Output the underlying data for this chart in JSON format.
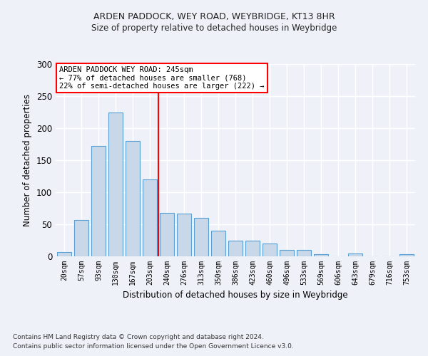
{
  "title1": "ARDEN PADDOCK, WEY ROAD, WEYBRIDGE, KT13 8HR",
  "title2": "Size of property relative to detached houses in Weybridge",
  "xlabel": "Distribution of detached houses by size in Weybridge",
  "ylabel": "Number of detached properties",
  "categories": [
    "20sqm",
    "57sqm",
    "93sqm",
    "130sqm",
    "167sqm",
    "203sqm",
    "240sqm",
    "276sqm",
    "313sqm",
    "350sqm",
    "386sqm",
    "423sqm",
    "460sqm",
    "496sqm",
    "533sqm",
    "569sqm",
    "606sqm",
    "643sqm",
    "679sqm",
    "716sqm",
    "753sqm"
  ],
  "values": [
    7,
    57,
    172,
    225,
    180,
    120,
    68,
    67,
    60,
    40,
    25,
    25,
    20,
    10,
    10,
    3,
    0,
    4,
    0,
    0,
    3
  ],
  "bar_color": "#c8d8e8",
  "bar_edge_color": "#5a9fd4",
  "vline_color": "red",
  "annotation_text": "ARDEN PADDOCK WEY ROAD: 245sqm\n← 77% of detached houses are smaller (768)\n22% of semi-detached houses are larger (222) →",
  "annotation_box_color": "#ffffff",
  "annotation_box_edge": "red",
  "background_color": "#eef2f8",
  "grid_color": "#ffffff",
  "footer1": "Contains HM Land Registry data © Crown copyright and database right 2024.",
  "footer2": "Contains public sector information licensed under the Open Government Licence v3.0.",
  "ylim": [
    0,
    300
  ],
  "yticks": [
    0,
    50,
    100,
    150,
    200,
    250,
    300
  ]
}
